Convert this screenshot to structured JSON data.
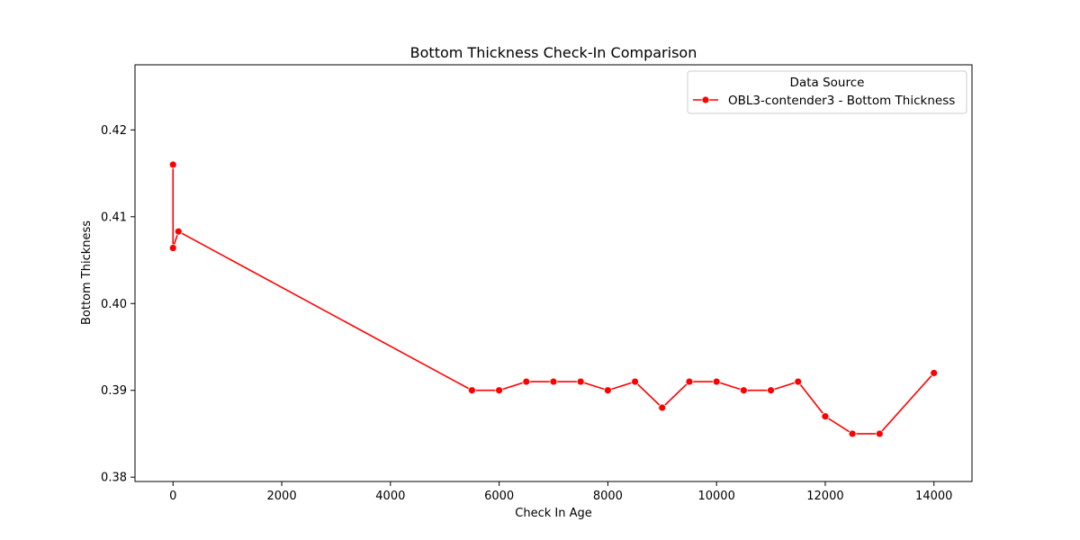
{
  "chart_data": {
    "type": "line",
    "title": "Bottom Thickness Check-In Comparison",
    "xlabel": "Check In Age",
    "ylabel": "Bottom Thickness",
    "xlim": [
      -700,
      14700
    ],
    "ylim": [
      0.3795,
      0.4275
    ],
    "xticks": [
      0,
      2000,
      4000,
      6000,
      8000,
      10000,
      12000,
      14000
    ],
    "xtick_labels": [
      "0",
      "2000",
      "4000",
      "6000",
      "8000",
      "10000",
      "12000",
      "14000"
    ],
    "yticks": [
      0.38,
      0.39,
      0.4,
      0.41,
      0.42
    ],
    "ytick_labels": [
      "0.38",
      "0.39",
      "0.40",
      "0.41",
      "0.42"
    ],
    "grid": false,
    "legend": {
      "title": "Data Source",
      "placement": "top-right"
    },
    "series": [
      {
        "name": "OBL3-contender3 - Bottom Thickness",
        "color": "#ff0000",
        "marker": "circle",
        "x": [
          0,
          0,
          100,
          5500,
          6000,
          6500,
          7000,
          7500,
          8000,
          8500,
          9000,
          9500,
          10000,
          10500,
          11000,
          11500,
          12000,
          12500,
          13000,
          14000
        ],
        "values": [
          0.416,
          0.4064,
          0.4083,
          0.39,
          0.39,
          0.391,
          0.391,
          0.391,
          0.39,
          0.391,
          0.388,
          0.391,
          0.391,
          0.39,
          0.39,
          0.391,
          0.387,
          0.385,
          0.385,
          0.392
        ]
      }
    ]
  }
}
